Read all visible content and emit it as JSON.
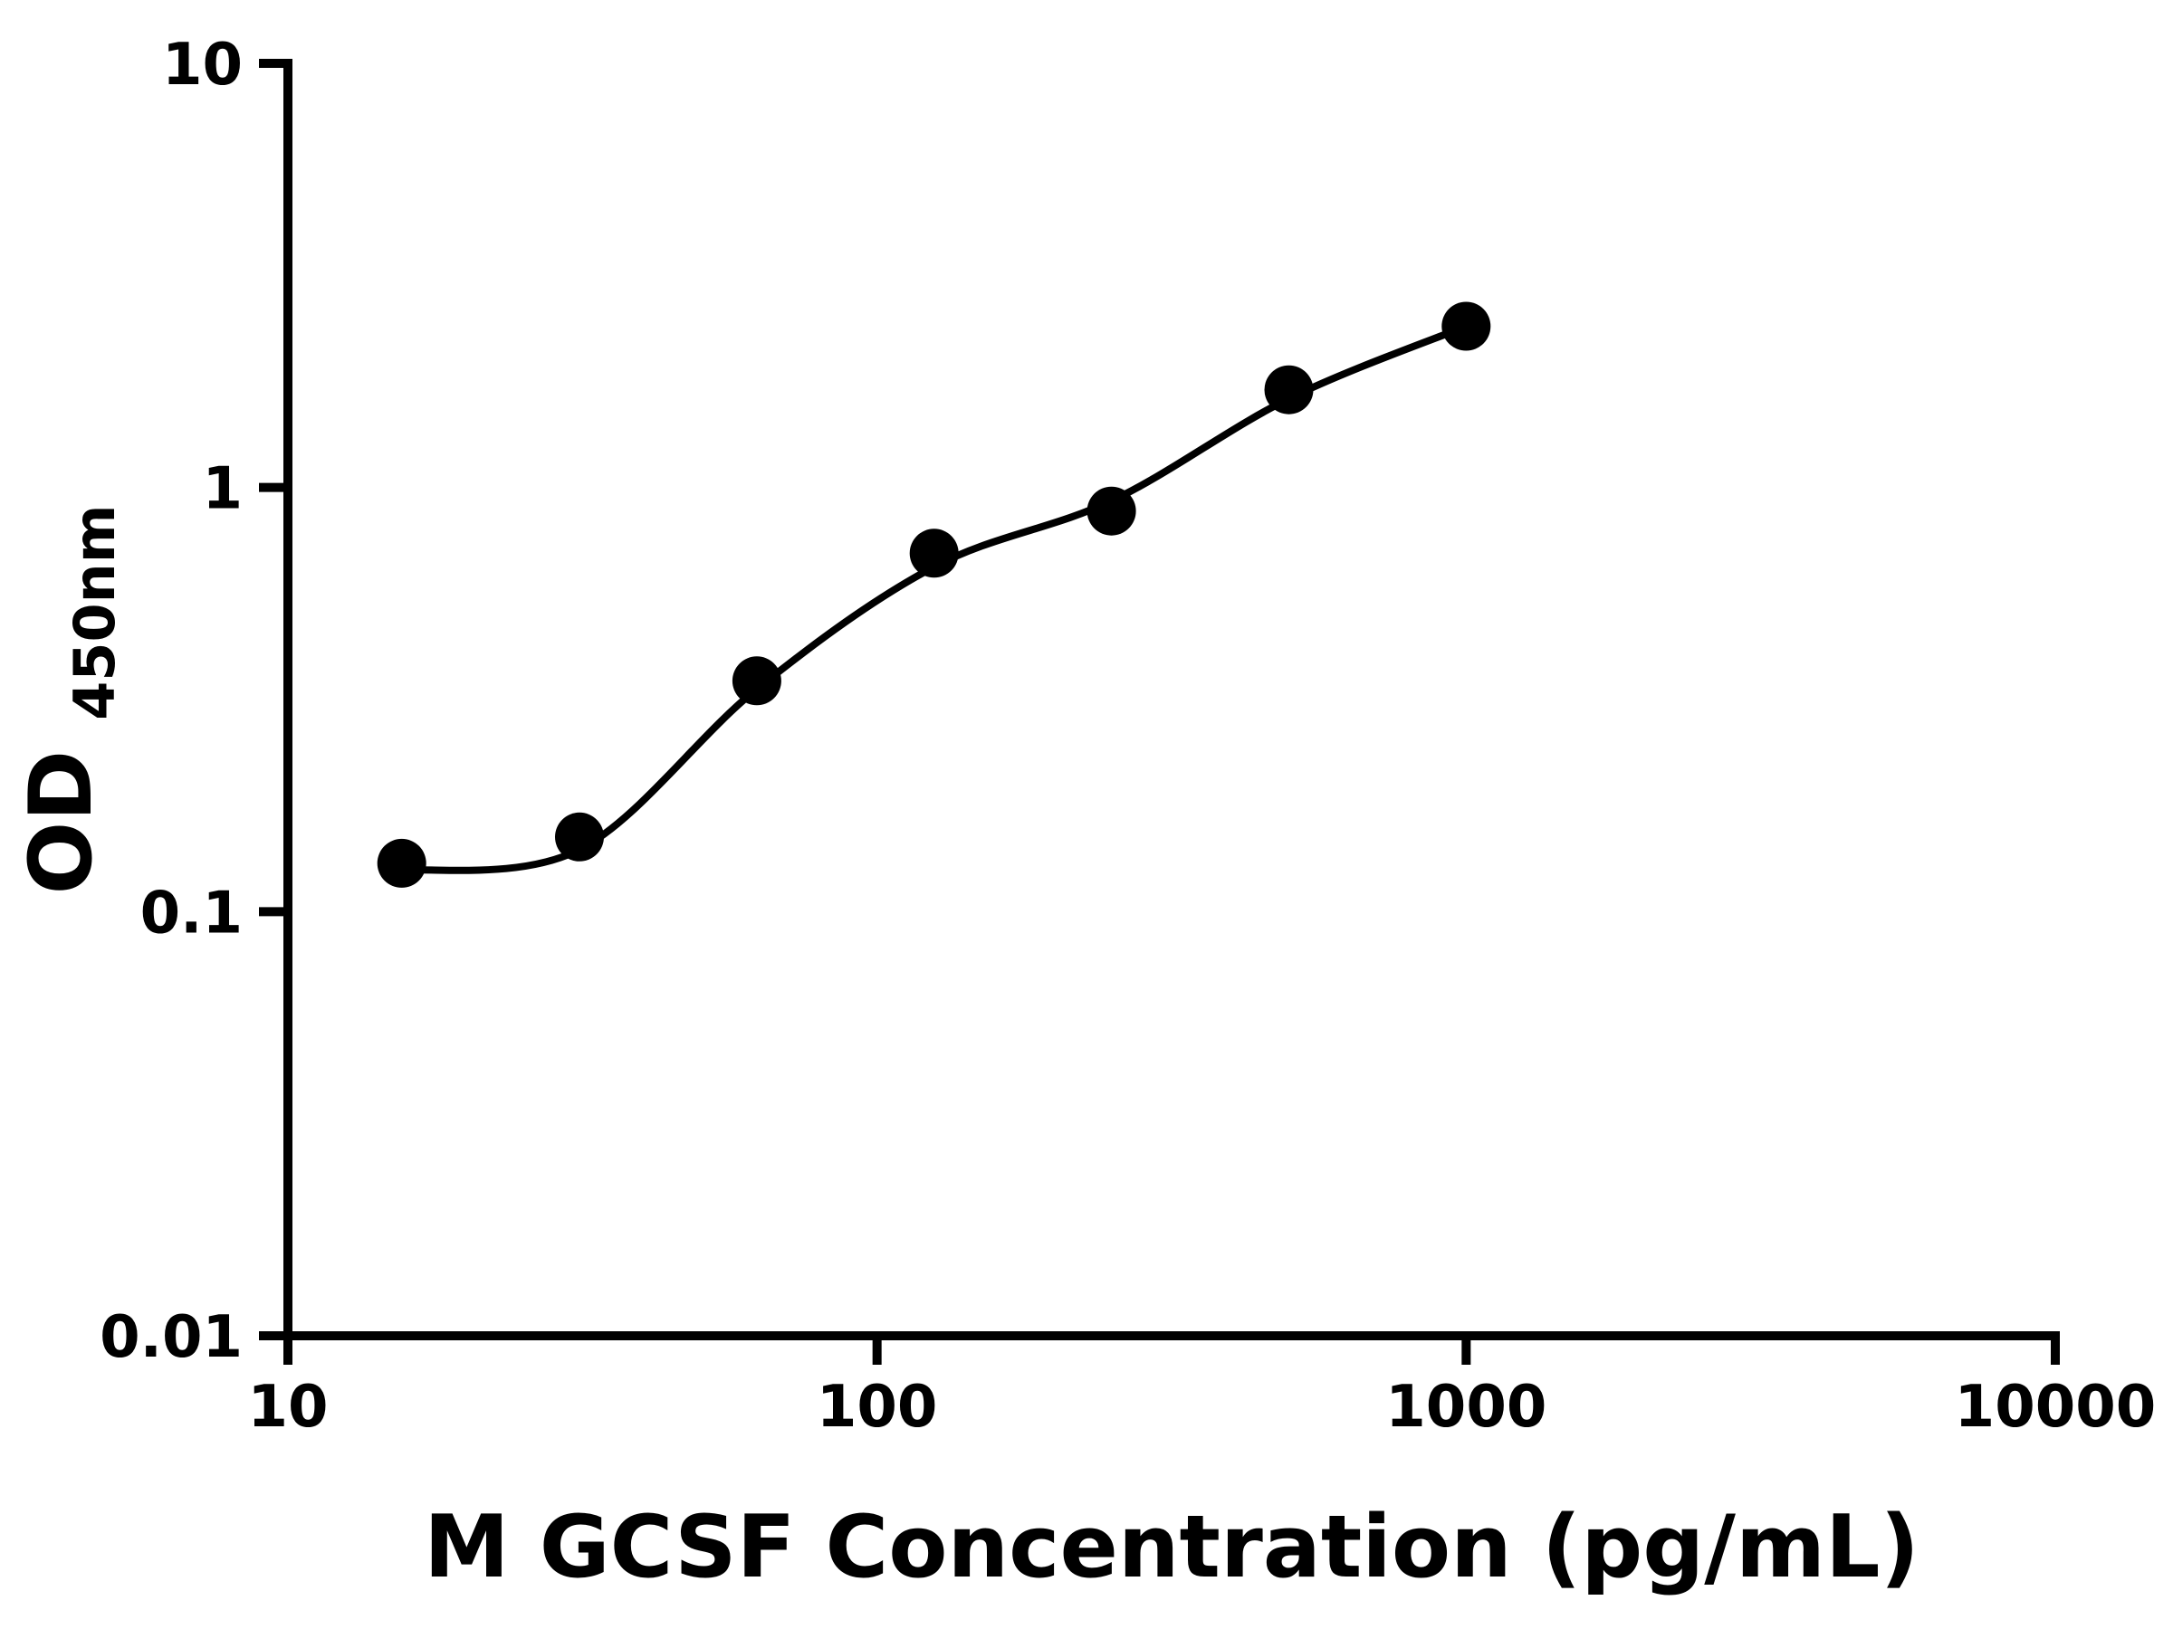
{
  "figure": {
    "background_color": "#ffffff",
    "axis_color": "#000000"
  },
  "chart_data": {
    "type": "scatter",
    "subtype": "elisa-standard-curve-with-fit",
    "title": "",
    "xlabel": "M GCSF Concentration (pg/mL)",
    "ylabel_main": "OD",
    "ylabel_sub": "450nm",
    "x_scale": "log",
    "y_scale": "log",
    "xlim": [
      10,
      10000
    ],
    "ylim": [
      0.01,
      10
    ],
    "x_ticks": [
      10,
      100,
      1000,
      10000
    ],
    "x_tick_labels": [
      "10",
      "100",
      "1000",
      "10000"
    ],
    "y_ticks": [
      0.01,
      0.1,
      1,
      10
    ],
    "y_tick_labels": [
      "0.01",
      "0.1",
      "1",
      "10"
    ],
    "grid": false,
    "legend": "none",
    "marker_color": "#000000",
    "marker_radius_px": 27,
    "line_color": "#000000",
    "points": [
      {
        "x": 15.6,
        "y": 0.13
      },
      {
        "x": 31.25,
        "y": 0.15
      },
      {
        "x": 62.5,
        "y": 0.35
      },
      {
        "x": 125,
        "y": 0.7
      },
      {
        "x": 250,
        "y": 0.88
      },
      {
        "x": 500,
        "y": 1.7
      },
      {
        "x": 1000,
        "y": 2.4
      }
    ],
    "fit_curve": [
      {
        "x": 15.6,
        "y": 0.125
      },
      {
        "x": 31.25,
        "y": 0.14
      },
      {
        "x": 62.5,
        "y": 0.335
      },
      {
        "x": 125,
        "y": 0.65
      },
      {
        "x": 250,
        "y": 0.93
      },
      {
        "x": 500,
        "y": 1.62
      },
      {
        "x": 1000,
        "y": 2.4
      }
    ]
  }
}
